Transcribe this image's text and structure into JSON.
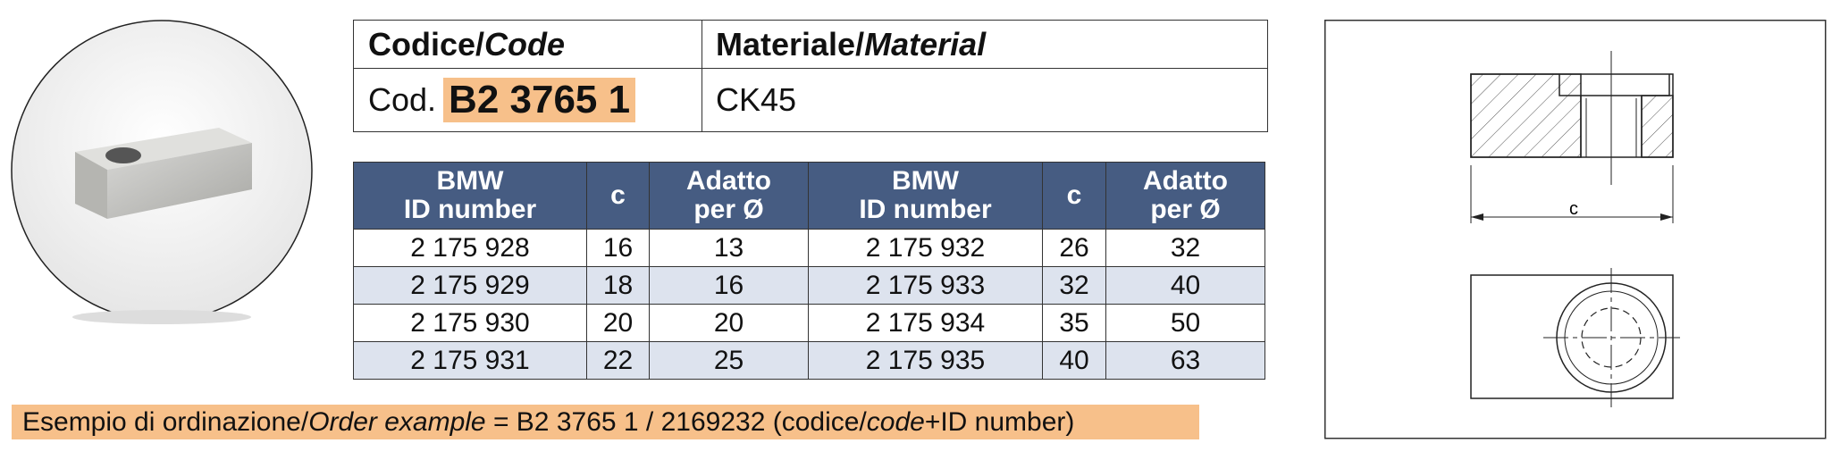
{
  "code_table": {
    "headers": [
      {
        "plain": "Codice/",
        "italic": "Code"
      },
      {
        "plain": "Materiale/",
        "italic": "Material"
      }
    ],
    "code_prefix": "Cod.",
    "code": "B2 3765 1",
    "material": "CK45"
  },
  "table": {
    "headers": [
      [
        "BMW",
        "ID number"
      ],
      [
        "c"
      ],
      [
        "Adatto",
        "per Ø"
      ],
      [
        "BMW",
        "ID number"
      ],
      [
        "c"
      ],
      [
        "Adatto",
        "per Ø"
      ]
    ],
    "rows": [
      [
        "2 175 928",
        "16",
        "13",
        "2 175 932",
        "26",
        "32"
      ],
      [
        "2 175 929",
        "18",
        "16",
        "2 175 933",
        "32",
        "40"
      ],
      [
        "2 175 930",
        "20",
        "20",
        "2 175 934",
        "35",
        "50"
      ],
      [
        "2 175 931",
        "22",
        "25",
        "2 175 935",
        "40",
        "63"
      ]
    ]
  },
  "order_example": [
    {
      "text": "Esempio di ordinazione/",
      "italic": false
    },
    {
      "text": "Order example",
      "italic": true
    },
    {
      "text": " = B2 3765 1 / 2169232 (codice/",
      "italic": false
    },
    {
      "text": "code",
      "italic": true
    },
    {
      "text": "+ID number)",
      "italic": false
    }
  ],
  "drawing": {
    "dimension_label": "c"
  }
}
